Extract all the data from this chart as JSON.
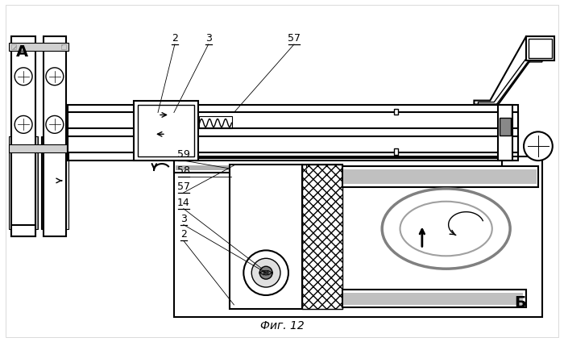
{
  "title": "Фиг. 12",
  "label_A": "А",
  "label_B": "Б",
  "bg_color": "#ffffff",
  "lc": "#000000",
  "gray1": "#888888",
  "gray2": "#b0b0b0",
  "gray3": "#d0d0d0",
  "gray_dark": "#606060"
}
